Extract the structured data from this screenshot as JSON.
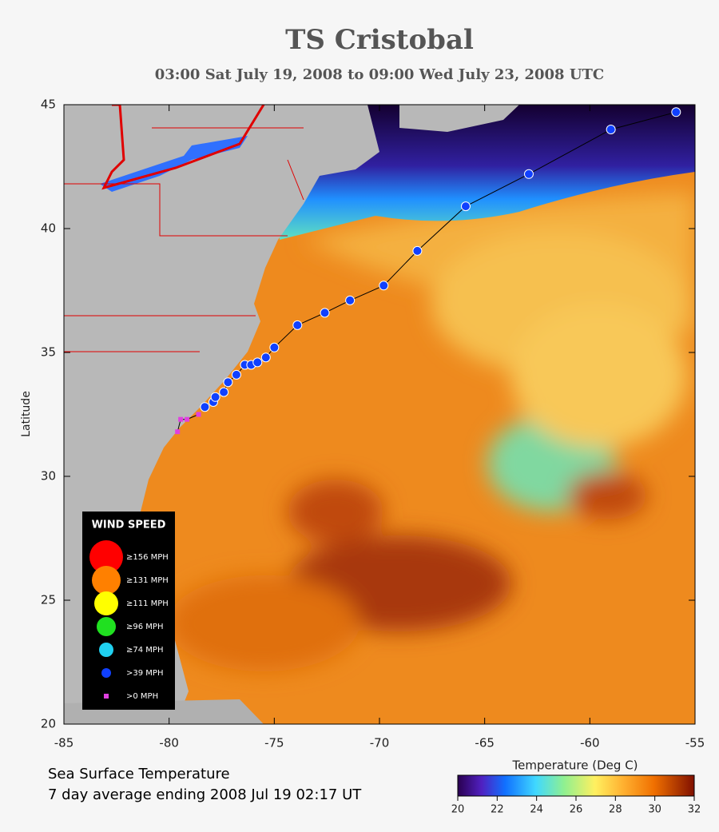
{
  "chart_data": {
    "type": "track",
    "title": "TS Cristobal",
    "subtitle": "03:00 Sat July 19, 2008 to 09:00 Wed July 23, 2008  UTC",
    "y_label": "Latitude",
    "xlim": [
      -85,
      -55
    ],
    "ylim": [
      20,
      45
    ],
    "xticks": [
      -85,
      -80,
      -75,
      -70,
      -65,
      -60,
      -55
    ],
    "yticks": [
      20,
      25,
      30,
      35,
      40,
      45
    ],
    "legend_title": "WIND SPEED",
    "series": [
      {
        "name": "≥156 MPH",
        "color": "#ff0000",
        "x": [],
        "values": []
      },
      {
        "name": "≥131 MPH",
        "color": "#ff8000",
        "x": [],
        "values": []
      },
      {
        "name": "≥111 MPH",
        "color": "#ffff00",
        "x": [],
        "values": []
      },
      {
        "name": "≥96 MPH",
        "color": "#20e020",
        "x": [],
        "values": []
      },
      {
        "name": "≥74 MPH",
        "color": "#20d0f0",
        "x": [],
        "values": []
      },
      {
        "name": ">39 MPH",
        "color": "#1040ff",
        "x": [
          -78.3,
          -77.9,
          -77.8,
          -77.4,
          -77.2,
          -76.8,
          -76.4,
          -76.1,
          -75.8,
          -75.4,
          -75.0,
          -73.9,
          -72.6,
          -71.4,
          -69.8,
          -68.2,
          -65.9,
          -62.9,
          -59.0,
          -55.9
        ],
        "values": [
          32.8,
          33.0,
          33.2,
          33.4,
          33.8,
          34.1,
          34.5,
          34.5,
          34.6,
          34.8,
          35.2,
          36.1,
          36.6,
          37.1,
          37.7,
          39.1,
          40.9,
          42.2,
          44.0,
          44.7
        ]
      },
      {
        "name": ">0 MPH",
        "color": "#e040e0",
        "x": [
          -79.6,
          -79.45,
          -79.15,
          -78.6
        ],
        "values": [
          31.8,
          32.3,
          32.3,
          32.5
        ]
      }
    ],
    "colorbar": {
      "label": "Temperature (Deg C)",
      "clim": [
        20,
        32
      ],
      "ticks": [
        20,
        22,
        24,
        26,
        28,
        30,
        32
      ]
    },
    "caption": [
      "Sea Surface Temperature",
      "7 day average ending 2008 Jul 19 02:17 UT"
    ]
  }
}
